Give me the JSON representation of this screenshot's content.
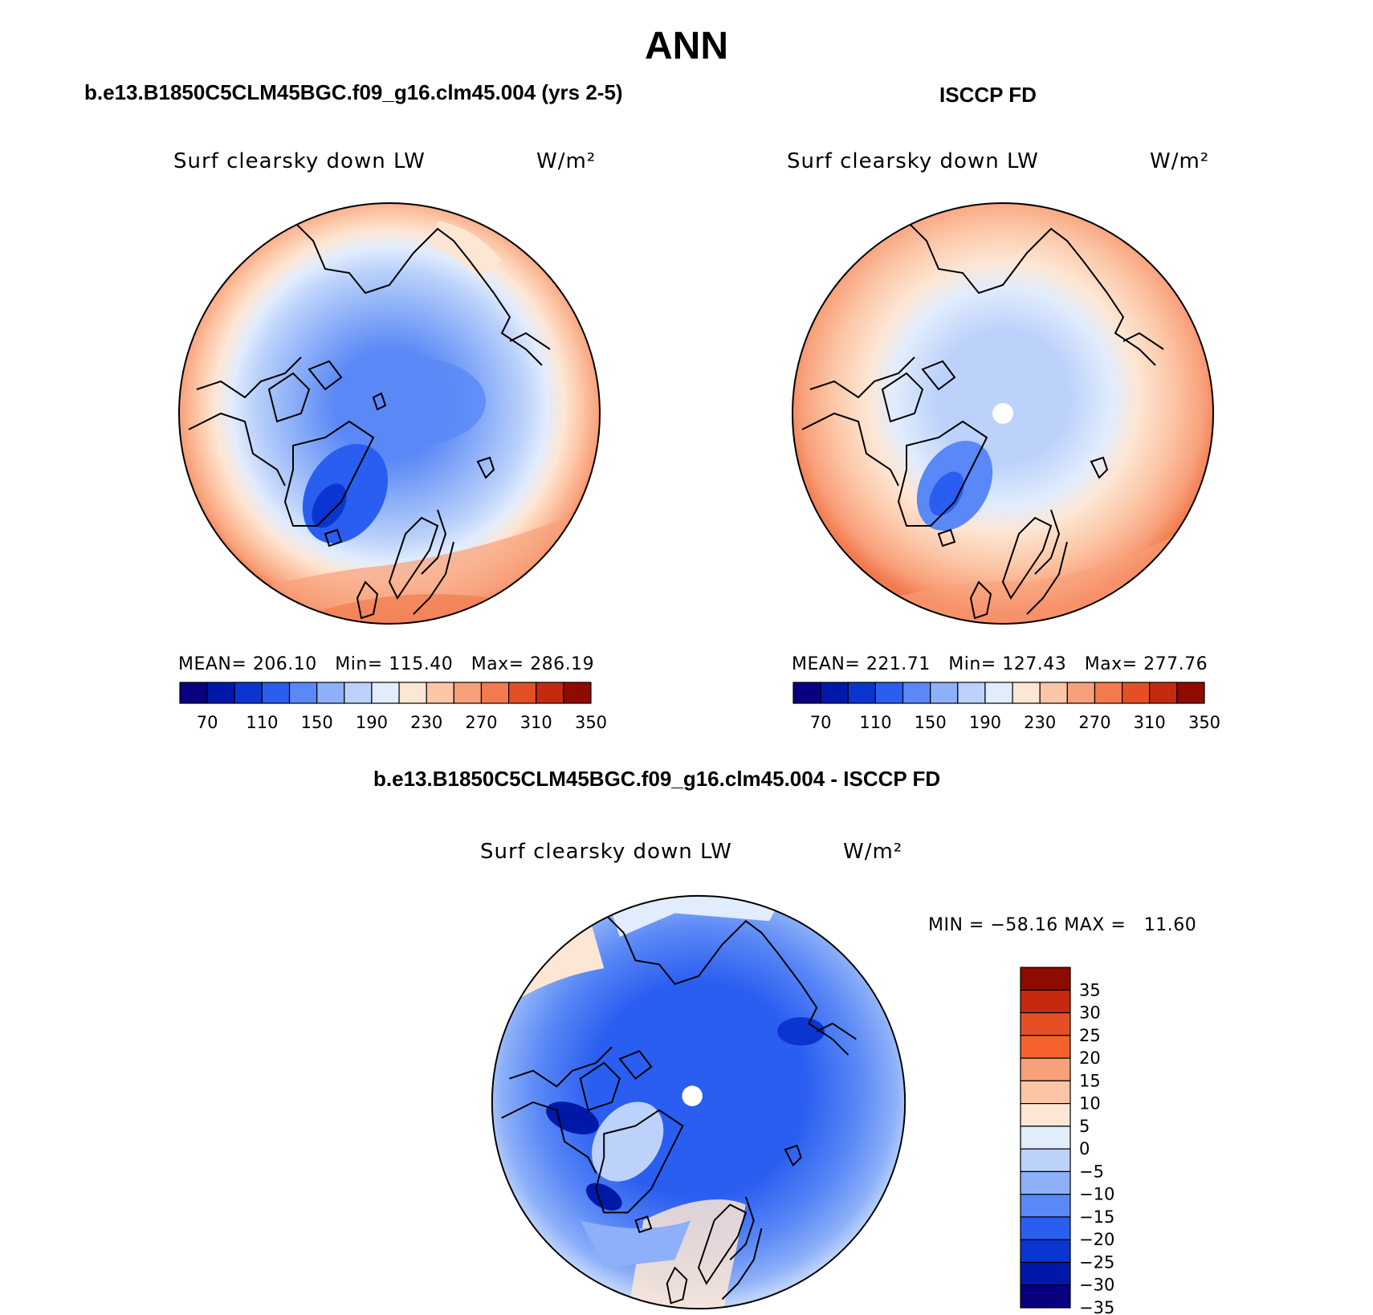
{
  "title": "ANN",
  "panels": [
    {
      "id": "model",
      "case_title": "b.e13.B1850C5CLM45BGC.f09_g16.clm45.004 (yrs 2-5)",
      "variable": "Surf clearsky down LW",
      "units": "W/m²",
      "stats": "MEAN= 206.10   Min= 115.40   Max= 286.19"
    },
    {
      "id": "obs",
      "case_title": "ISCCP FD",
      "variable": "Surf clearsky down LW",
      "units": "W/m²",
      "stats": "MEAN= 221.71   Min= 127.43   Max= 277.76"
    },
    {
      "id": "diff",
      "case_title": "b.e13.B1850C5CLM45BGC.f09_g16.clm45.004 - ISCCP FD",
      "variable": "Surf clearsky down LW",
      "units": "W/m²",
      "stats": "MIN = −58.16 MAX =   11.60"
    }
  ],
  "colorbar_abs": {
    "tick_labels": [
      "70",
      "110",
      "150",
      "190",
      "230",
      "270",
      "310",
      "350"
    ],
    "colors": [
      "#08007f",
      "#0018a8",
      "#0a35d0",
      "#2a5ef0",
      "#5a88f6",
      "#8db0f8",
      "#bcd2fb",
      "#e1ecfd",
      "#fde6d3",
      "#fcc6a6",
      "#f8a07a",
      "#f27a4f",
      "#e54f26",
      "#c52a0f",
      "#8e0b00"
    ]
  },
  "colorbar_diff": {
    "tick_labels": [
      "35",
      "30",
      "25",
      "20",
      "15",
      "10",
      "5",
      "0",
      "−5",
      "−10",
      "−15",
      "−20",
      "−25",
      "−30",
      "−35"
    ],
    "colors": [
      "#8e0b00",
      "#c52a0f",
      "#e54f26",
      "#f6602c",
      "#f8a07a",
      "#fcc6a6",
      "#fde6d3",
      "#e1ecfd",
      "#bcd2fb",
      "#8db0f8",
      "#5a88f6",
      "#2a5ef0",
      "#0a35d0",
      "#0018a8",
      "#08007f"
    ]
  }
}
